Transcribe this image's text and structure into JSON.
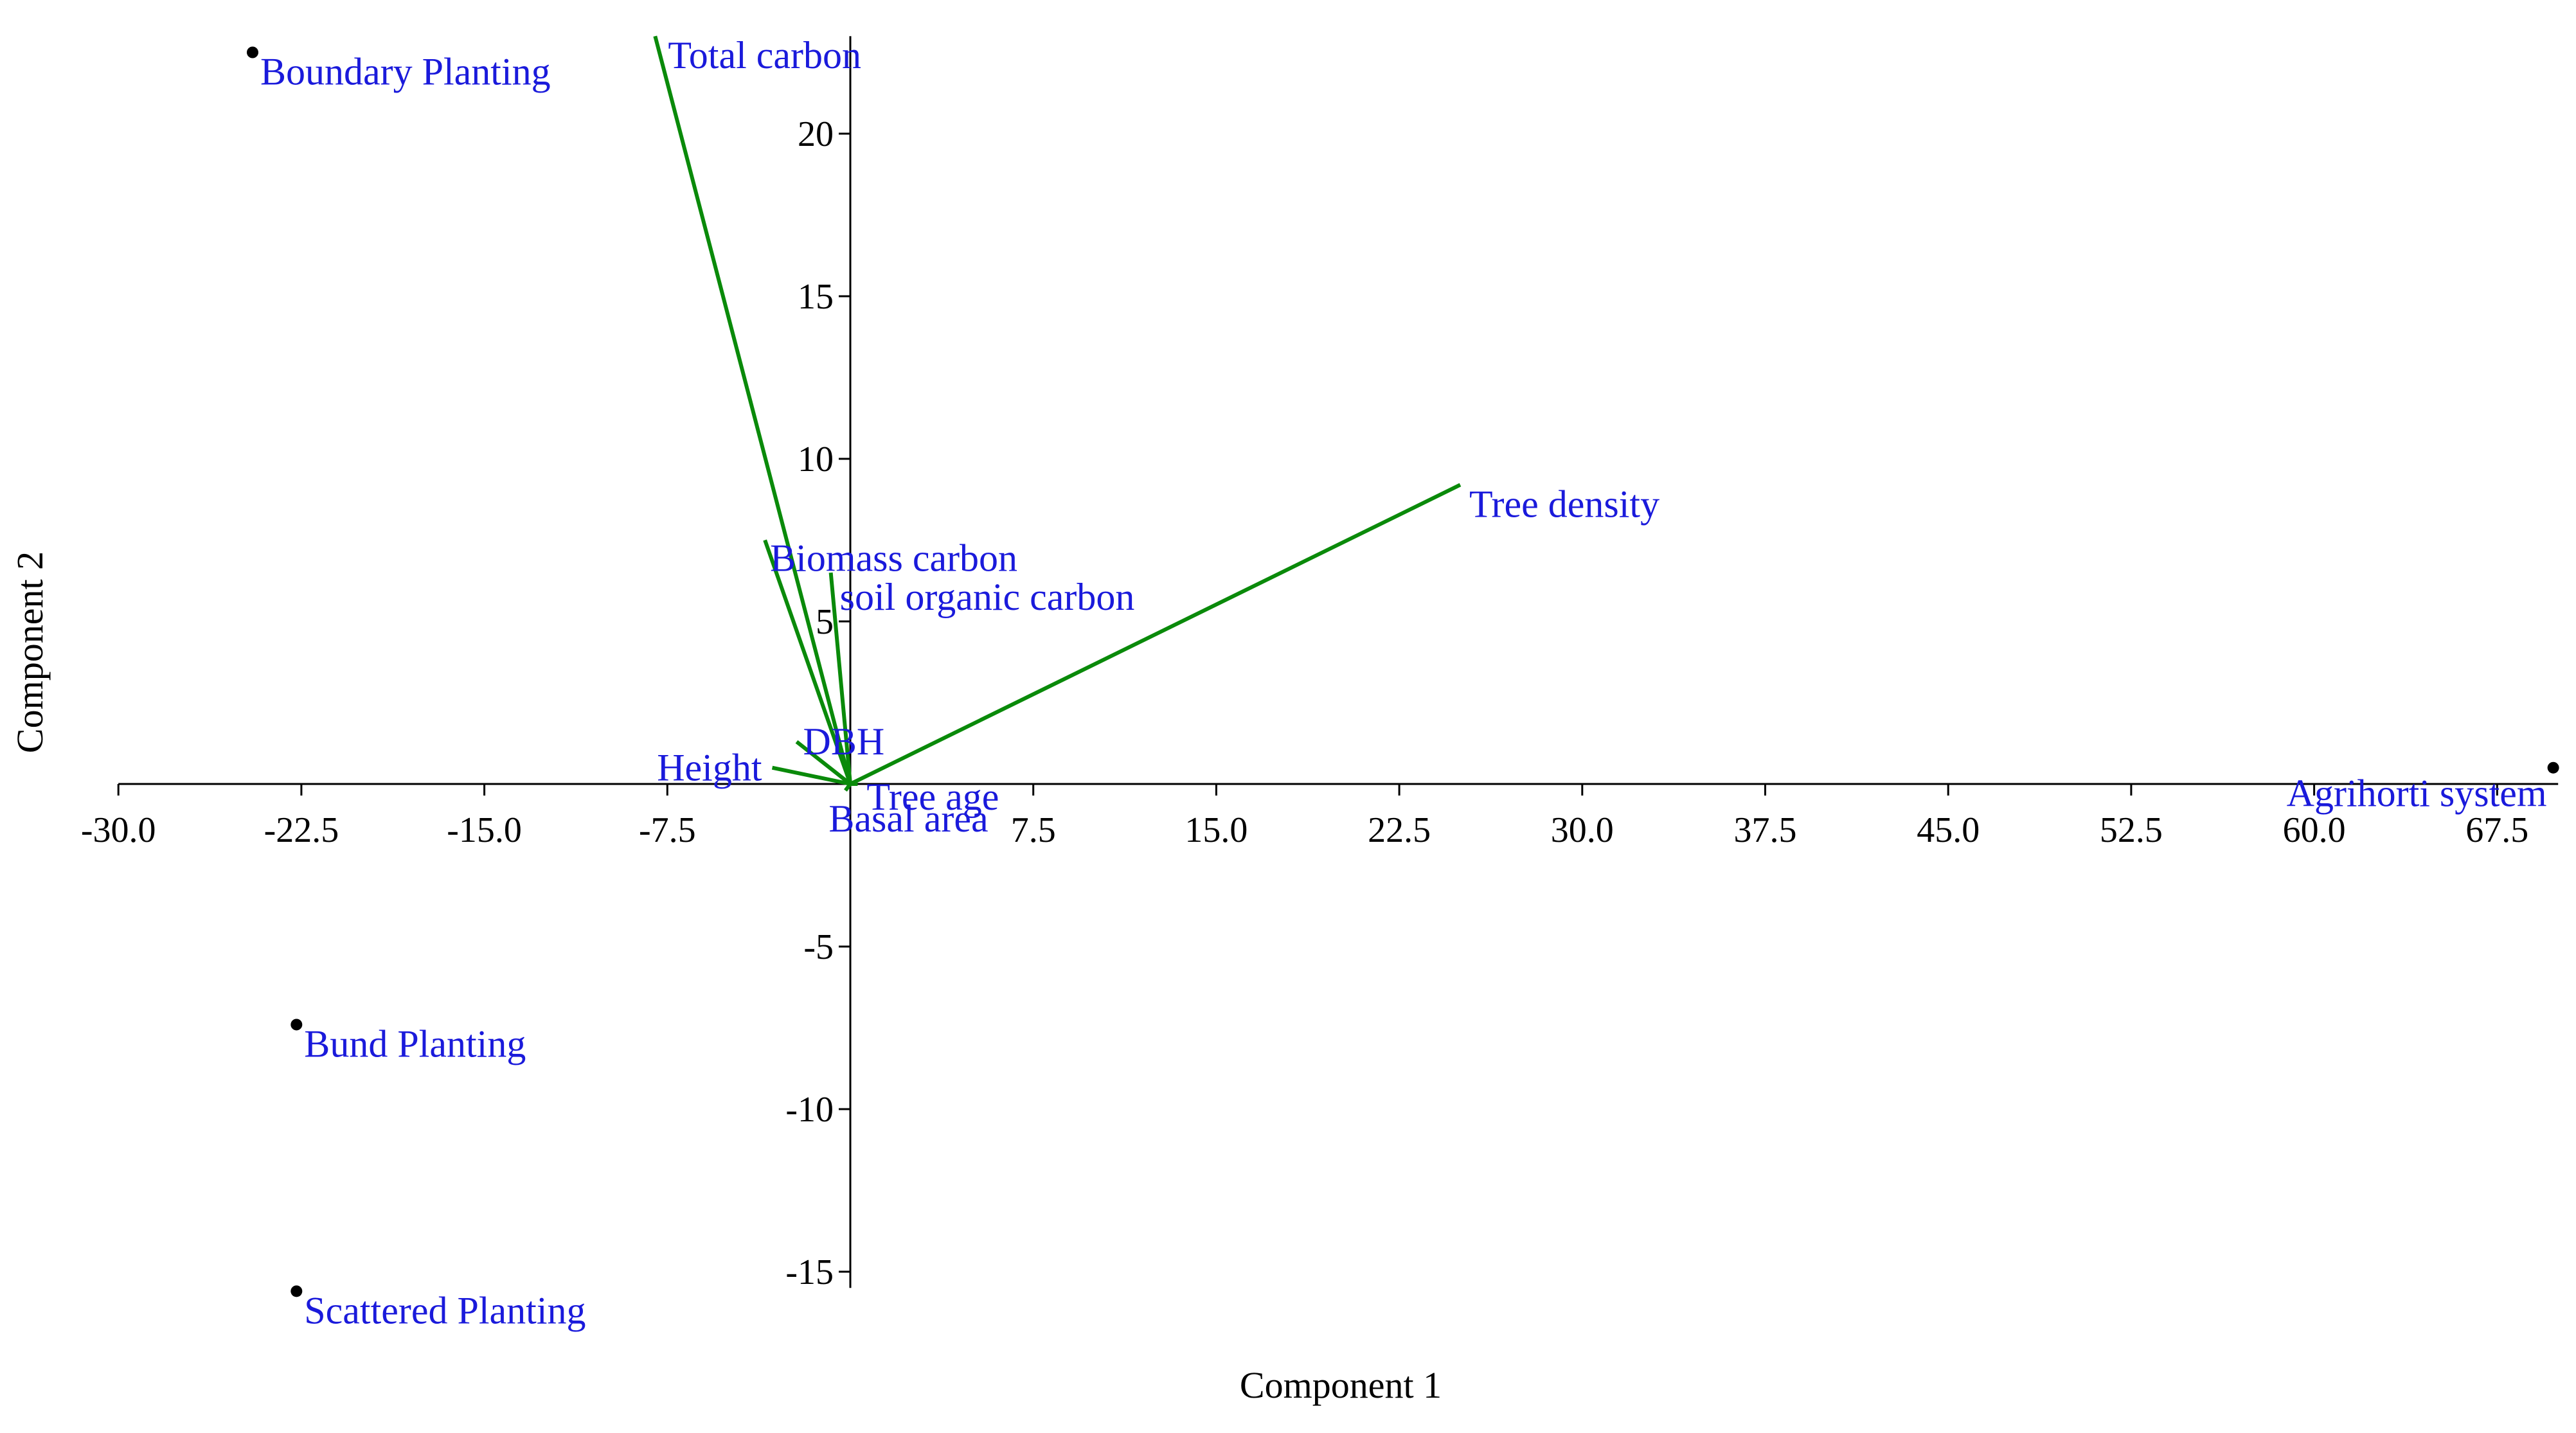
{
  "chart_data": {
    "type": "scatter",
    "subtype": "biplot",
    "title": "",
    "xlabel": "Component 1",
    "ylabel": "Component 2",
    "xlim": [
      -30.0,
      70.0
    ],
    "ylim": [
      -15.5,
      23.0
    ],
    "x_ticks": [
      -30.0,
      -22.5,
      -15.0,
      -7.5,
      0.0,
      7.5,
      15.0,
      22.5,
      30.0,
      37.5,
      45.0,
      52.5,
      60.0,
      67.5
    ],
    "x_tick_labels": [
      "-30.0",
      "-22.5",
      "-15.0",
      "-7.5",
      "",
      "7.5",
      "15.0",
      "22.5",
      "30.0",
      "37.5",
      "45.0",
      "52.5",
      "60.0",
      "67.5"
    ],
    "y_ticks": [
      -15,
      -10,
      -5,
      5,
      10,
      15,
      20
    ],
    "y_tick_labels": [
      "-15",
      "-10",
      "-5",
      "5",
      "10",
      "15",
      "20"
    ],
    "grid": false,
    "colors": {
      "points": "#000000",
      "vectors": "#0a8a0a",
      "labels": "#1a1adb",
      "axes": "#000000"
    },
    "points": [
      {
        "label": "Boundary Planting",
        "x": -24.5,
        "y": 22.5
      },
      {
        "label": "Bund Planting",
        "x": -22.7,
        "y": -7.4
      },
      {
        "label": "Scattered Planting",
        "x": -22.7,
        "y": -15.6
      },
      {
        "label": "Agrihorti system",
        "x": 69.8,
        "y": 0.5
      }
    ],
    "vectors": [
      {
        "label": "Total carbon",
        "x": -8.0,
        "y": 23.0
      },
      {
        "label": "Tree density",
        "x": 25.0,
        "y": 9.2
      },
      {
        "label": "Biomass carbon",
        "x": -3.5,
        "y": 7.5
      },
      {
        "label": "soil organic carbon",
        "x": -0.8,
        "y": 6.5
      },
      {
        "label": "DBH",
        "x": -2.2,
        "y": 1.3
      },
      {
        "label": "Height",
        "x": -3.2,
        "y": 0.5
      },
      {
        "label": "Tree age",
        "x": 0.3,
        "y": 0.0
      },
      {
        "label": "Basal area",
        "x": -0.2,
        "y": -0.2
      }
    ]
  }
}
